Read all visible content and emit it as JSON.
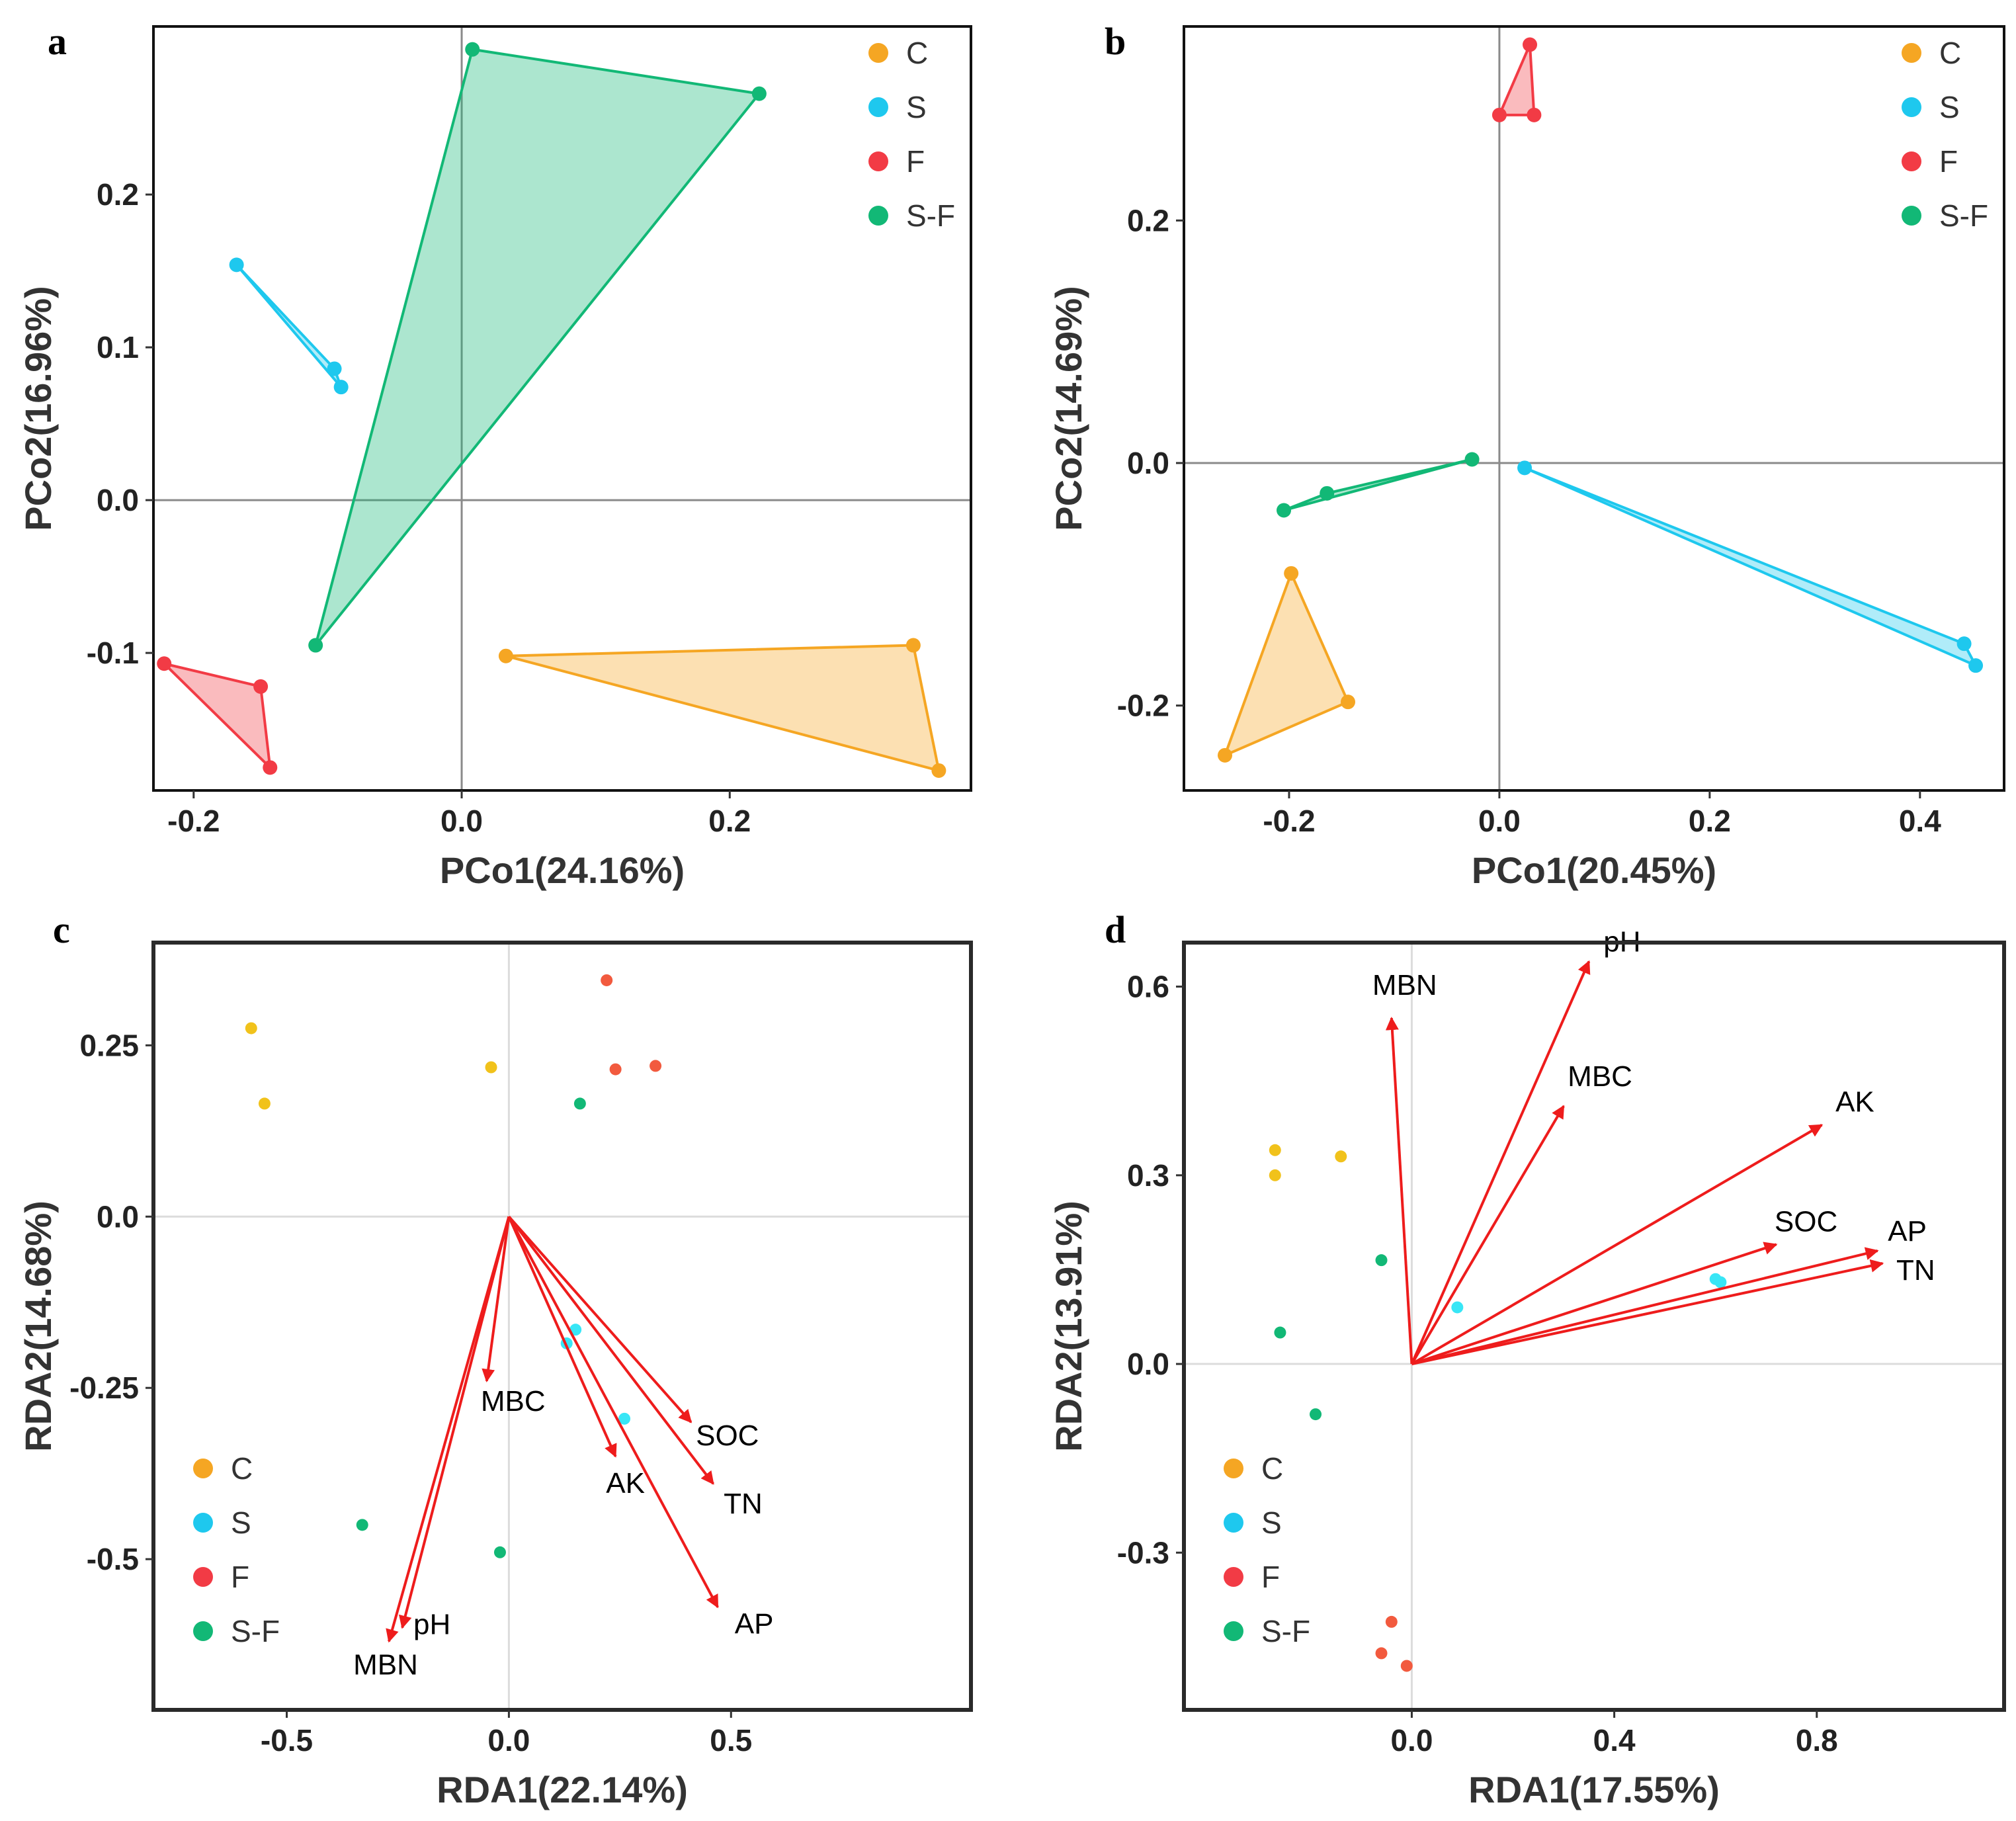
{
  "chart_data": [
    {
      "type": "scatter",
      "panel": "a",
      "xlabel": "PCo1(24.16%)",
      "ylabel": "PCo2(16.96%)",
      "xlim": [
        -0.23,
        0.38
      ],
      "ylim": [
        -0.19,
        0.31
      ],
      "xticks": [
        -0.2,
        0.0,
        0.2
      ],
      "xtick_labels": [
        "-0.2",
        "0.0",
        "0.2"
      ],
      "yticks": [
        -0.1,
        0.0,
        0.1,
        0.2
      ],
      "ytick_labels": [
        "-0.1",
        "0.0",
        "0.1",
        "0.2"
      ],
      "legend": [
        "C",
        "S",
        "F",
        "S-F"
      ],
      "legend_position": "top-right",
      "hull": true,
      "series": [
        {
          "name": "C",
          "color": "#f5a623",
          "x": [
            0.033,
            0.337,
            0.356
          ],
          "y": [
            -0.102,
            -0.095,
            -0.177
          ]
        },
        {
          "name": "S",
          "color": "#1ec8ee",
          "x": [
            -0.168,
            -0.095,
            -0.09
          ],
          "y": [
            0.154,
            0.086,
            0.074
          ]
        },
        {
          "name": "F",
          "color": "#f23b45",
          "x": [
            -0.222,
            -0.15,
            -0.143
          ],
          "y": [
            -0.107,
            -0.122,
            -0.175
          ]
        },
        {
          "name": "S-F",
          "color": "#12b876",
          "x": [
            0.008,
            0.222,
            -0.109
          ],
          "y": [
            0.295,
            0.266,
            -0.095
          ]
        }
      ]
    },
    {
      "type": "scatter",
      "panel": "b",
      "xlabel": "PCo1(20.45%)",
      "ylabel": "PCo2(14.69%)",
      "xlim": [
        -0.3,
        0.48
      ],
      "ylim": [
        -0.27,
        0.36
      ],
      "xticks": [
        -0.2,
        0.0,
        0.2,
        0.4
      ],
      "xtick_labels": [
        "-0.2",
        "0.0",
        "0.2",
        "0.4"
      ],
      "yticks": [
        -0.2,
        0.0,
        0.2
      ],
      "ytick_labels": [
        "-0.2",
        "0.0",
        "0.2"
      ],
      "legend": [
        "C",
        "S",
        "F",
        "S-F"
      ],
      "legend_position": "top-right",
      "hull": true,
      "series": [
        {
          "name": "C",
          "color": "#f5a623",
          "x": [
            -0.198,
            -0.144,
            -0.261
          ],
          "y": [
            -0.091,
            -0.197,
            -0.241
          ]
        },
        {
          "name": "S",
          "color": "#1ec8ee",
          "x": [
            0.024,
            0.442,
            0.453
          ],
          "y": [
            -0.004,
            -0.149,
            -0.167
          ]
        },
        {
          "name": "F",
          "color": "#f23b45",
          "x": [
            0.029,
            0.0,
            0.033
          ],
          "y": [
            0.345,
            0.287,
            0.287
          ]
        },
        {
          "name": "S-F",
          "color": "#12b876",
          "x": [
            -0.026,
            -0.164,
            -0.205
          ],
          "y": [
            0.003,
            -0.025,
            -0.039
          ]
        }
      ]
    },
    {
      "type": "scatter",
      "panel": "c",
      "xlabel": "RDA1(22.14%)",
      "ylabel": "RDA2(14.68%)",
      "xlim": [
        -0.8,
        1.04
      ],
      "ylim": [
        -0.72,
        0.4
      ],
      "xticks": [
        -0.5,
        0.0,
        0.5
      ],
      "xtick_labels": [
        "-0.5",
        "0.0",
        "0.5"
      ],
      "yticks": [
        -0.5,
        -0.25,
        0.0,
        0.25
      ],
      "ytick_labels": [
        "-0.5",
        "-0.25",
        "0.0",
        "0.25"
      ],
      "legend": [
        "C",
        "S",
        "F",
        "S-F"
      ],
      "legend_position": "bottom-left",
      "hull": false,
      "series": [
        {
          "name": "C",
          "color": "#f1c21b",
          "x": [
            -0.58,
            -0.55,
            -0.04
          ],
          "y": [
            0.275,
            0.165,
            0.218
          ]
        },
        {
          "name": "S",
          "color": "#38e6f6",
          "x": [
            0.15,
            0.13,
            0.26
          ],
          "y": [
            -0.165,
            -0.185,
            -0.295
          ]
        },
        {
          "name": "F",
          "color": "#f25a3e",
          "x": [
            0.22,
            0.24,
            0.33
          ],
          "y": [
            0.345,
            0.215,
            0.22
          ]
        },
        {
          "name": "S-F",
          "color": "#12b876",
          "x": [
            0.16,
            -0.33,
            -0.02
          ],
          "y": [
            0.165,
            -0.45,
            -0.49
          ]
        }
      ],
      "vectors": [
        {
          "label": "MBC",
          "x": -0.05,
          "y": -0.24
        },
        {
          "label": "SOC",
          "x": 0.41,
          "y": -0.3
        },
        {
          "label": "AK",
          "x": 0.24,
          "y": -0.35
        },
        {
          "label": "TN",
          "x": 0.46,
          "y": -0.39
        },
        {
          "label": "AP",
          "x": 0.47,
          "y": -0.57
        },
        {
          "label": "pH",
          "x": -0.24,
          "y": -0.6
        },
        {
          "label": "MBN",
          "x": -0.27,
          "y": -0.62
        }
      ]
    },
    {
      "type": "scatter",
      "panel": "d",
      "xlabel": "RDA1(17.55%)",
      "ylabel": "RDA2(13.91%)",
      "xlim": [
        -0.45,
        1.17
      ],
      "ylim": [
        -0.55,
        0.67
      ],
      "xticks": [
        0.0,
        0.4,
        0.8
      ],
      "xtick_labels": [
        "0.0",
        "0.4",
        "0.8"
      ],
      "yticks": [
        -0.3,
        0.0,
        0.3,
        0.6
      ],
      "ytick_labels": [
        "-0.3",
        "0.0",
        "0.3",
        "0.6"
      ],
      "legend": [
        "C",
        "S",
        "F",
        "S-F"
      ],
      "legend_position": "bottom-left",
      "hull": false,
      "series": [
        {
          "name": "C",
          "color": "#f1c21b",
          "x": [
            -0.27,
            -0.27,
            -0.14
          ],
          "y": [
            0.34,
            0.3,
            0.33
          ]
        },
        {
          "name": "S",
          "color": "#38e6f6",
          "x": [
            0.09,
            0.6,
            0.61
          ],
          "y": [
            0.09,
            0.135,
            0.13
          ]
        },
        {
          "name": "F",
          "color": "#f25a3e",
          "x": [
            -0.04,
            -0.06,
            -0.01
          ],
          "y": [
            -0.41,
            -0.46,
            -0.48
          ]
        },
        {
          "name": "S-F",
          "color": "#12b876",
          "x": [
            -0.06,
            -0.26,
            -0.19
          ],
          "y": [
            0.165,
            0.05,
            -0.08
          ]
        }
      ],
      "vectors": [
        {
          "label": "MBN",
          "x": -0.04,
          "y": 0.55
        },
        {
          "label": "pH",
          "x": 0.35,
          "y": 0.64
        },
        {
          "label": "MBC",
          "x": 0.3,
          "y": 0.41
        },
        {
          "label": "AK",
          "x": 0.81,
          "y": 0.38
        },
        {
          "label": "SOC",
          "x": 0.72,
          "y": 0.19
        },
        {
          "label": "AP",
          "x": 0.92,
          "y": 0.18
        },
        {
          "label": "TN",
          "x": 0.93,
          "y": 0.16
        }
      ]
    }
  ],
  "panels": {
    "a": {
      "letter": "a"
    },
    "b": {
      "letter": "b"
    },
    "c": {
      "letter": "c"
    },
    "d": {
      "letter": "d"
    }
  }
}
